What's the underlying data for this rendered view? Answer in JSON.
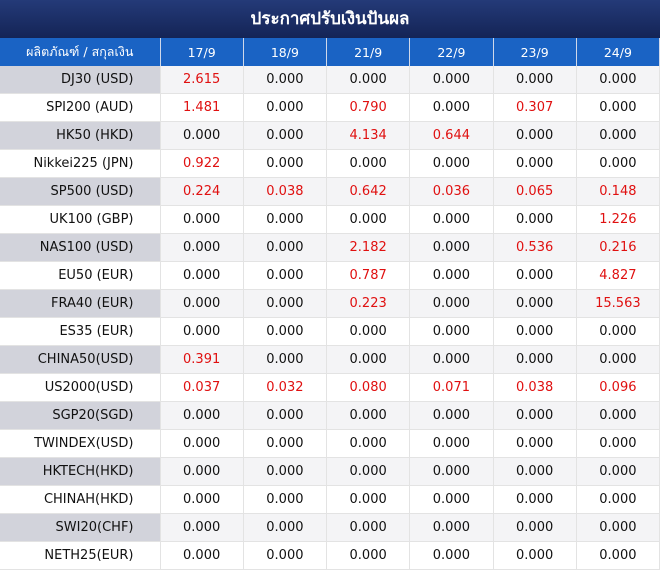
{
  "title": "ประกาศปรับเงินปันผล",
  "table": {
    "header": [
      "ผลิตภัณฑ์ / สกุลเงิน",
      "17/9",
      "18/9",
      "21/9",
      "22/9",
      "23/9",
      "24/9"
    ],
    "rows": [
      [
        "DJ30 (USD)",
        "2.615",
        "0.000",
        "0.000",
        "0.000",
        "0.000",
        "0.000"
      ],
      [
        "SPI200 (AUD)",
        "1.481",
        "0.000",
        "0.790",
        "0.000",
        "0.307",
        "0.000"
      ],
      [
        "HK50 (HKD)",
        "0.000",
        "0.000",
        "4.134",
        "0.644",
        "0.000",
        "0.000"
      ],
      [
        "Nikkei225 (JPN)",
        "0.922",
        "0.000",
        "0.000",
        "0.000",
        "0.000",
        "0.000"
      ],
      [
        "SP500 (USD)",
        "0.224",
        "0.038",
        "0.642",
        "0.036",
        "0.065",
        "0.148"
      ],
      [
        "UK100 (GBP)",
        "0.000",
        "0.000",
        "0.000",
        "0.000",
        "0.000",
        "1.226"
      ],
      [
        "NAS100 (USD)",
        "0.000",
        "0.000",
        "2.182",
        "0.000",
        "0.536",
        "0.216"
      ],
      [
        "EU50 (EUR)",
        "0.000",
        "0.000",
        "0.787",
        "0.000",
        "0.000",
        "4.827"
      ],
      [
        "FRA40 (EUR)",
        "0.000",
        "0.000",
        "0.223",
        "0.000",
        "0.000",
        "15.563"
      ],
      [
        "ES35 (EUR)",
        "0.000",
        "0.000",
        "0.000",
        "0.000",
        "0.000",
        "0.000"
      ],
      [
        "CHINA50(USD)",
        "0.391",
        "0.000",
        "0.000",
        "0.000",
        "0.000",
        "0.000"
      ],
      [
        "US2000(USD)",
        "0.037",
        "0.032",
        "0.080",
        "0.071",
        "0.038",
        "0.096"
      ],
      [
        "SGP20(SGD)",
        "0.000",
        "0.000",
        "0.000",
        "0.000",
        "0.000",
        "0.000"
      ],
      [
        "TWINDEX(USD)",
        "0.000",
        "0.000",
        "0.000",
        "0.000",
        "0.000",
        "0.000"
      ],
      [
        "HKTECH(HKD)",
        "0.000",
        "0.000",
        "0.000",
        "0.000",
        "0.000",
        "0.000"
      ],
      [
        "CHINAH(HKD)",
        "0.000",
        "0.000",
        "0.000",
        "0.000",
        "0.000",
        "0.000"
      ],
      [
        "SWI20(CHF)",
        "0.000",
        "0.000",
        "0.000",
        "0.000",
        "0.000",
        "0.000"
      ],
      [
        "NETH25(EUR)",
        "0.000",
        "0.000",
        "0.000",
        "0.000",
        "0.000",
        "0.000"
      ]
    ]
  }
}
